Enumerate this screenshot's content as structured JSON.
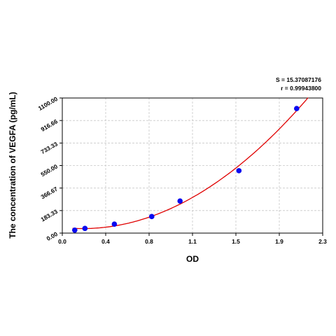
{
  "chart_data": {
    "type": "scatter",
    "title": "",
    "xlabel": "OD",
    "ylabel": "The concentration of VEGFA (pg/mL)",
    "xlim": [
      0.0,
      2.3
    ],
    "ylim": [
      0.0,
      1100.0
    ],
    "x_ticks": [
      "0.0",
      "0.4",
      "0.8",
      "1.1",
      "1.5",
      "1.9",
      "2.3"
    ],
    "y_ticks": [
      "0.00",
      "183.33",
      "366.67",
      "550.00",
      "733.33",
      "916.66",
      "1100.00"
    ],
    "grid": true,
    "points": [
      {
        "x": 0.11,
        "y": 24
      },
      {
        "x": 0.2,
        "y": 38
      },
      {
        "x": 0.46,
        "y": 73
      },
      {
        "x": 0.79,
        "y": 135
      },
      {
        "x": 1.04,
        "y": 261
      },
      {
        "x": 1.56,
        "y": 508
      },
      {
        "x": 2.07,
        "y": 1014
      }
    ],
    "fit_curve": {
      "type": "polynomial",
      "color": "#e00000"
    },
    "point_color": "#0a0af0",
    "annotations": {
      "s": "S = 15.37087176",
      "r": "r = 0.99943800"
    }
  }
}
